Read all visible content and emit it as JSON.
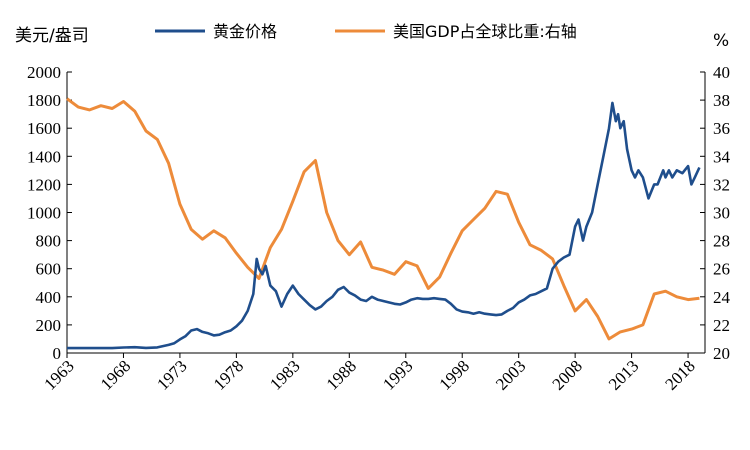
{
  "chart_data": {
    "type": "line",
    "title": "",
    "left_unit": "美元/盎司",
    "right_unit": "%",
    "xlabel": "",
    "x_ticks": [
      "1963",
      "1968",
      "1973",
      "1978",
      "1983",
      "1988",
      "1993",
      "1998",
      "2003",
      "2008",
      "2013",
      "2018"
    ],
    "xlim": [
      1963,
      2019.5
    ],
    "ylim_left": [
      0,
      2000
    ],
    "yticks_left": [
      0,
      200,
      400,
      600,
      800,
      1000,
      1200,
      1400,
      1600,
      1800,
      2000
    ],
    "ylim_right": [
      20,
      40
    ],
    "yticks_right": [
      20,
      22,
      24,
      26,
      28,
      30,
      32,
      34,
      36,
      38,
      40
    ],
    "grid": false,
    "legend": "top",
    "colors": {
      "gold": "#1f4e8c",
      "gdp": "#ed8b3a",
      "axis": "#000000"
    },
    "series": [
      {
        "name": "黄金价格",
        "axis": "left",
        "color": "#1f4e8c",
        "x": [
          1963,
          1967,
          1968,
          1969,
          1970,
          1971,
          1972,
          1972.5,
          1973,
          1973.5,
          1974,
          1974.5,
          1975,
          1975.5,
          1976,
          1976.5,
          1977,
          1977.5,
          1978,
          1978.5,
          1979,
          1979.5,
          1979.8,
          1980,
          1980.3,
          1980.6,
          1981,
          1981.5,
          1982,
          1982.5,
          1983,
          1983.5,
          1984,
          1984.5,
          1985,
          1985.5,
          1986,
          1986.5,
          1987,
          1987.5,
          1988,
          1988.5,
          1989,
          1989.5,
          1990,
          1990.5,
          1991,
          1991.5,
          1992,
          1992.5,
          1993,
          1993.5,
          1994,
          1994.5,
          1995,
          1995.5,
          1996,
          1996.5,
          1997,
          1997.5,
          1998,
          1998.5,
          1999,
          1999.5,
          2000,
          2000.5,
          2001,
          2001.5,
          2002,
          2002.5,
          2003,
          2003.5,
          2004,
          2004.5,
          2005,
          2005.5,
          2006,
          2006.5,
          2007,
          2007.5,
          2008,
          2008.3,
          2008.7,
          2009,
          2009.5,
          2010,
          2010.5,
          2011,
          2011.3,
          2011.6,
          2011.8,
          2012,
          2012.3,
          2012.6,
          2013,
          2013.3,
          2013.6,
          2014,
          2014.5,
          2015,
          2015.3,
          2015.8,
          2016,
          2016.3,
          2016.6,
          2017,
          2017.5,
          2018,
          2018.3,
          2018.6,
          2019
        ],
        "values": [
          35,
          35,
          39,
          41,
          36,
          40,
          58,
          70,
          97,
          120,
          160,
          170,
          150,
          140,
          125,
          130,
          148,
          160,
          190,
          230,
          300,
          420,
          670,
          600,
          560,
          620,
          480,
          440,
          330,
          420,
          480,
          420,
          380,
          340,
          310,
          330,
          370,
          400,
          450,
          470,
          430,
          410,
          380,
          370,
          400,
          380,
          370,
          360,
          350,
          345,
          360,
          380,
          390,
          385,
          385,
          390,
          385,
          380,
          350,
          310,
          295,
          290,
          280,
          290,
          280,
          275,
          270,
          275,
          300,
          320,
          360,
          380,
          410,
          420,
          440,
          460,
          600,
          650,
          680,
          700,
          900,
          950,
          800,
          900,
          1000,
          1200,
          1400,
          1600,
          1780,
          1650,
          1700,
          1600,
          1650,
          1450,
          1300,
          1250,
          1300,
          1250,
          1100,
          1200,
          1200,
          1300,
          1250,
          1300,
          1250,
          1300,
          1280,
          1330,
          1200,
          1250,
          1320
        ]
      },
      {
        "name": "美国GDP占全球比重:右轴",
        "axis": "right",
        "color": "#ed8b3a",
        "x": [
          1963,
          1964,
          1965,
          1966,
          1967,
          1968,
          1969,
          1970,
          1971,
          1972,
          1973,
          1974,
          1975,
          1976,
          1977,
          1978,
          1979,
          1980,
          1981,
          1982,
          1983,
          1984,
          1985,
          1986,
          1987,
          1988,
          1989,
          1990,
          1991,
          1992,
          1993,
          1994,
          1995,
          1996,
          1997,
          1998,
          1999,
          2000,
          2001,
          2002,
          2003,
          2004,
          2005,
          2006,
          2007,
          2008,
          2009,
          2010,
          2011,
          2012,
          2013,
          2014,
          2015,
          2016,
          2017,
          2018,
          2019
        ],
        "values": [
          38.1,
          37.5,
          37.3,
          37.6,
          37.4,
          37.9,
          37.2,
          35.8,
          35.2,
          33.5,
          30.6,
          28.8,
          28.1,
          28.7,
          28.2,
          27.1,
          26.1,
          25.3,
          27.5,
          28.8,
          30.8,
          32.9,
          33.7,
          30.0,
          28.0,
          27.0,
          27.9,
          26.1,
          25.9,
          25.6,
          26.5,
          26.2,
          24.6,
          25.4,
          27.1,
          28.7,
          29.5,
          30.3,
          31.5,
          31.3,
          29.3,
          27.7,
          27.3,
          26.7,
          24.8,
          23.0,
          23.8,
          22.6,
          21.0,
          21.5,
          21.7,
          22.0,
          24.2,
          24.4,
          24.0,
          23.8,
          23.9
        ]
      }
    ]
  }
}
